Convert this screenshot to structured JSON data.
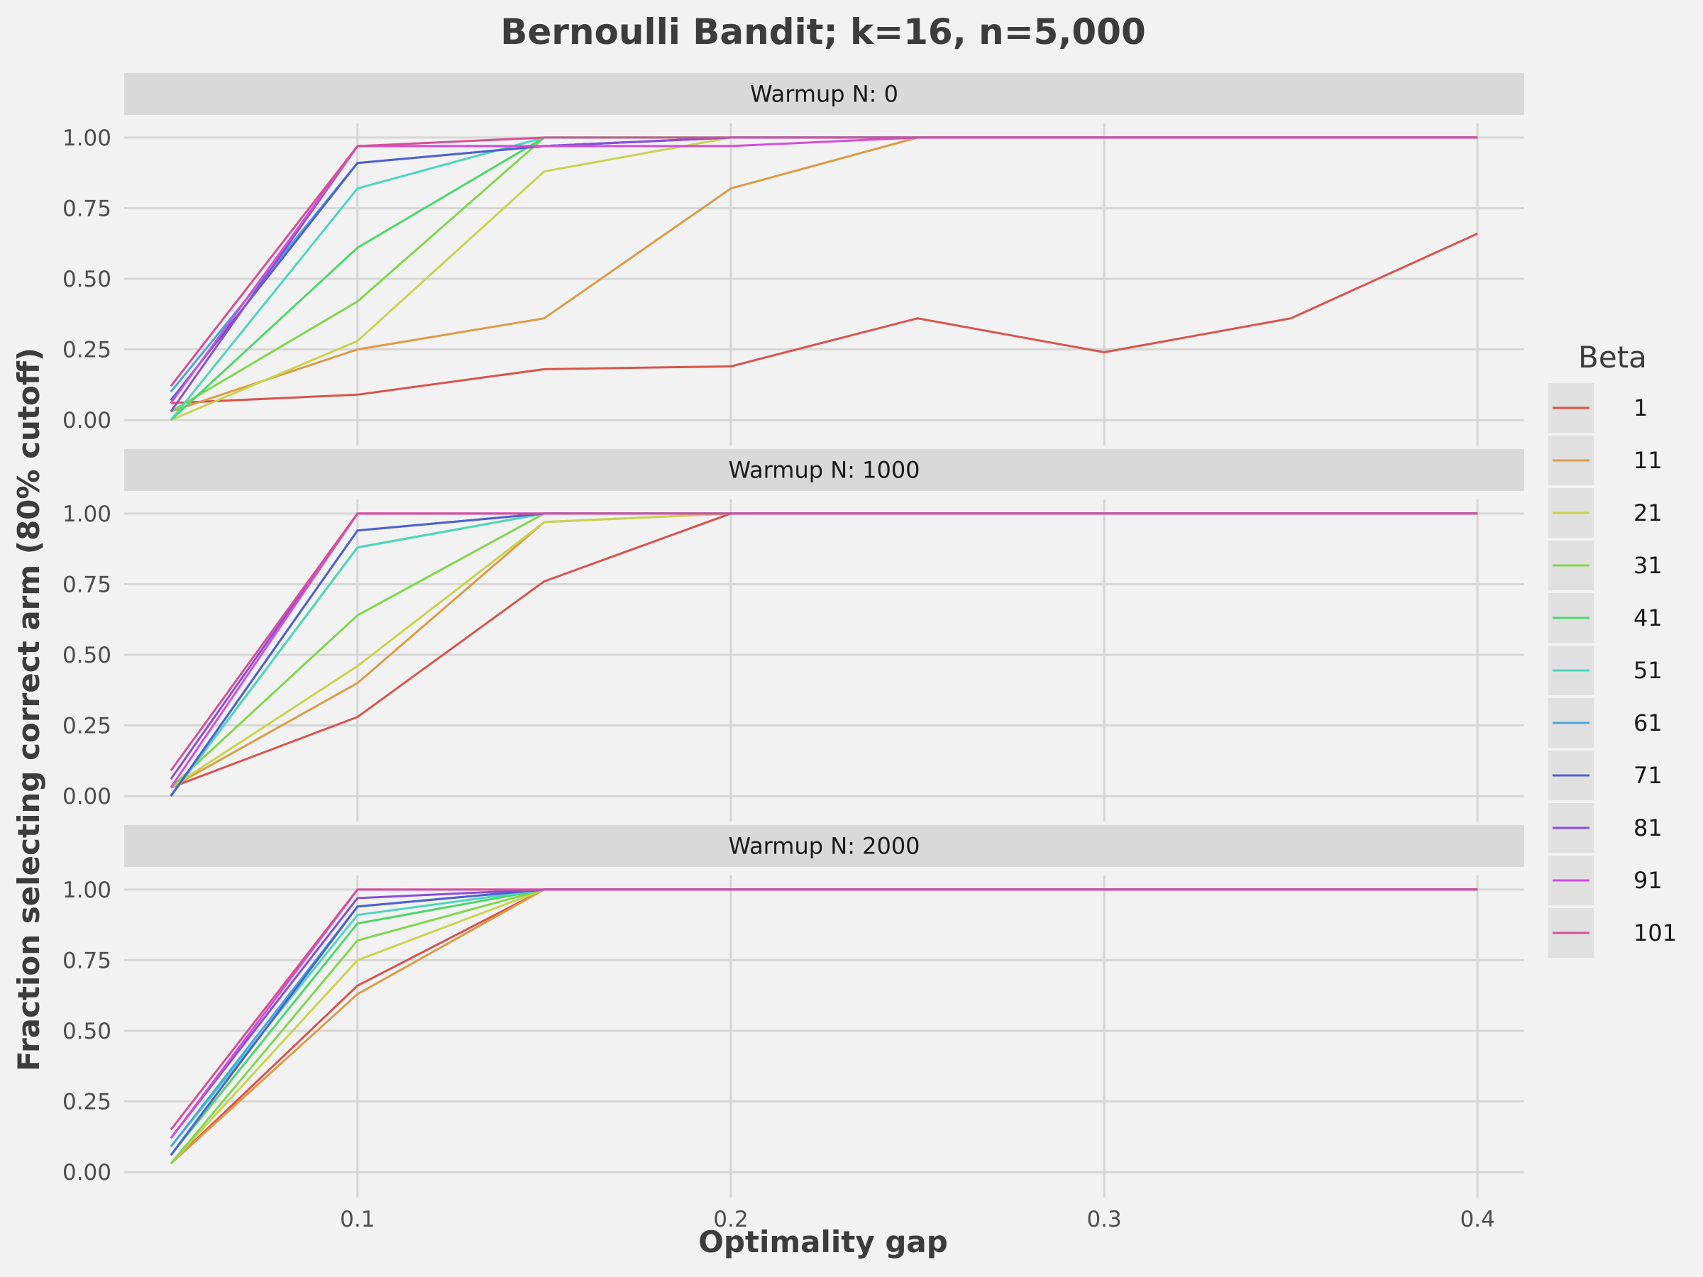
{
  "chart_data": {
    "type": "line",
    "title": "Bernoulli Bandit; k=16, n=5,000",
    "xlabel": "Optimality gap",
    "ylabel": "Fraction selecting correct arm (80% cutoff)",
    "xlim": [
      0.0375,
      0.4125
    ],
    "ylim": [
      -0.05,
      1.05
    ],
    "x_ticks": [
      0.1,
      0.2,
      0.3,
      0.4
    ],
    "x_tick_labels": [
      "0.1",
      "0.2",
      "0.3",
      "0.4"
    ],
    "y_ticks": [
      0,
      0.25,
      0.5,
      0.75,
      1.0
    ],
    "y_tick_labels": [
      "0.00",
      "0.25",
      "0.50",
      "0.75",
      "1.00"
    ],
    "grid": true,
    "legend": {
      "title": "Beta",
      "placement": "right"
    },
    "x": [
      0.05,
      0.1,
      0.15,
      0.2,
      0.25,
      0.3,
      0.35,
      0.4
    ],
    "series_meta": [
      {
        "name": "1",
        "color": "#d9534f"
      },
      {
        "name": "11",
        "color": "#dd9b47"
      },
      {
        "name": "21",
        "color": "#c8d44f"
      },
      {
        "name": "31",
        "color": "#82d64e"
      },
      {
        "name": "41",
        "color": "#4fd66a"
      },
      {
        "name": "51",
        "color": "#4ed6bb"
      },
      {
        "name": "61",
        "color": "#49a8d8"
      },
      {
        "name": "71",
        "color": "#4f5fd4"
      },
      {
        "name": "81",
        "color": "#8a4fd8"
      },
      {
        "name": "91",
        "color": "#d24fd8"
      },
      {
        "name": "101",
        "color": "#d84f95"
      }
    ],
    "panels": [
      {
        "label": "Warmup N: 0",
        "series": [
          {
            "name": "1",
            "values": [
              0.06,
              0.09,
              0.18,
              0.19,
              0.36,
              0.24,
              0.36,
              0.66
            ]
          },
          {
            "name": "11",
            "values": [
              0.03,
              0.25,
              0.36,
              0.82,
              1.0,
              1.0,
              1.0,
              1.0
            ]
          },
          {
            "name": "21",
            "values": [
              0.0,
              0.28,
              0.88,
              1.0,
              1.0,
              1.0,
              1.0,
              1.0
            ]
          },
          {
            "name": "31",
            "values": [
              0.03,
              0.42,
              1.0,
              1.0,
              1.0,
              1.0,
              1.0,
              1.0
            ]
          },
          {
            "name": "41",
            "values": [
              0.0,
              0.61,
              1.0,
              1.0,
              1.0,
              1.0,
              1.0,
              1.0
            ]
          },
          {
            "name": "51",
            "values": [
              0.0,
              0.82,
              1.0,
              1.0,
              1.0,
              1.0,
              1.0,
              1.0
            ]
          },
          {
            "name": "61",
            "values": [
              0.1,
              0.91,
              0.97,
              1.0,
              1.0,
              1.0,
              1.0,
              1.0
            ]
          },
          {
            "name": "71",
            "values": [
              0.07,
              0.91,
              0.97,
              1.0,
              1.0,
              1.0,
              1.0,
              1.0
            ]
          },
          {
            "name": "81",
            "values": [
              0.03,
              0.97,
              0.97,
              1.0,
              1.0,
              1.0,
              1.0,
              1.0
            ]
          },
          {
            "name": "91",
            "values": [
              0.06,
              0.97,
              0.97,
              0.97,
              1.0,
              1.0,
              1.0,
              1.0
            ]
          },
          {
            "name": "101",
            "values": [
              0.12,
              0.97,
              1.0,
              1.0,
              1.0,
              1.0,
              1.0,
              1.0
            ]
          }
        ]
      },
      {
        "label": "Warmup N: 1000",
        "series": [
          {
            "name": "1",
            "values": [
              0.03,
              0.28,
              0.76,
              1.0,
              1.0,
              1.0,
              1.0,
              1.0
            ]
          },
          {
            "name": "11",
            "values": [
              0.03,
              0.4,
              0.97,
              1.0,
              1.0,
              1.0,
              1.0,
              1.0
            ]
          },
          {
            "name": "21",
            "values": [
              0.03,
              0.46,
              0.97,
              1.0,
              1.0,
              1.0,
              1.0,
              1.0
            ]
          },
          {
            "name": "31",
            "values": [
              0.03,
              0.64,
              1.0,
              1.0,
              1.0,
              1.0,
              1.0,
              1.0
            ]
          },
          {
            "name": "41",
            "values": [
              0.0,
              0.88,
              1.0,
              1.0,
              1.0,
              1.0,
              1.0,
              1.0
            ]
          },
          {
            "name": "51",
            "values": [
              0.0,
              0.88,
              1.0,
              1.0,
              1.0,
              1.0,
              1.0,
              1.0
            ]
          },
          {
            "name": "61",
            "values": [
              0.0,
              0.94,
              1.0,
              1.0,
              1.0,
              1.0,
              1.0,
              1.0
            ]
          },
          {
            "name": "71",
            "values": [
              0.0,
              0.94,
              1.0,
              1.0,
              1.0,
              1.0,
              1.0,
              1.0
            ]
          },
          {
            "name": "81",
            "values": [
              0.06,
              1.0,
              1.0,
              1.0,
              1.0,
              1.0,
              1.0,
              1.0
            ]
          },
          {
            "name": "91",
            "values": [
              0.03,
              1.0,
              1.0,
              1.0,
              1.0,
              1.0,
              1.0,
              1.0
            ]
          },
          {
            "name": "101",
            "values": [
              0.09,
              1.0,
              1.0,
              1.0,
              1.0,
              1.0,
              1.0,
              1.0
            ]
          }
        ]
      },
      {
        "label": "Warmup N: 2000",
        "series": [
          {
            "name": "1",
            "values": [
              0.03,
              0.66,
              1.0,
              1.0,
              1.0,
              1.0,
              1.0,
              1.0
            ]
          },
          {
            "name": "11",
            "values": [
              0.03,
              0.63,
              1.0,
              1.0,
              1.0,
              1.0,
              1.0,
              1.0
            ]
          },
          {
            "name": "21",
            "values": [
              0.03,
              0.75,
              1.0,
              1.0,
              1.0,
              1.0,
              1.0,
              1.0
            ]
          },
          {
            "name": "31",
            "values": [
              0.03,
              0.82,
              1.0,
              1.0,
              1.0,
              1.0,
              1.0,
              1.0
            ]
          },
          {
            "name": "41",
            "values": [
              0.06,
              0.88,
              1.0,
              1.0,
              1.0,
              1.0,
              1.0,
              1.0
            ]
          },
          {
            "name": "51",
            "values": [
              0.09,
              0.91,
              1.0,
              1.0,
              1.0,
              1.0,
              1.0,
              1.0
            ]
          },
          {
            "name": "61",
            "values": [
              0.09,
              0.94,
              1.0,
              1.0,
              1.0,
              1.0,
              1.0,
              1.0
            ]
          },
          {
            "name": "71",
            "values": [
              0.06,
              0.94,
              1.0,
              1.0,
              1.0,
              1.0,
              1.0,
              1.0
            ]
          },
          {
            "name": "81",
            "values": [
              0.12,
              0.97,
              1.0,
              1.0,
              1.0,
              1.0,
              1.0,
              1.0
            ]
          },
          {
            "name": "91",
            "values": [
              0.12,
              1.0,
              1.0,
              1.0,
              1.0,
              1.0,
              1.0,
              1.0
            ]
          },
          {
            "name": "101",
            "values": [
              0.15,
              1.0,
              1.0,
              1.0,
              1.0,
              1.0,
              1.0,
              1.0
            ]
          }
        ]
      }
    ]
  }
}
